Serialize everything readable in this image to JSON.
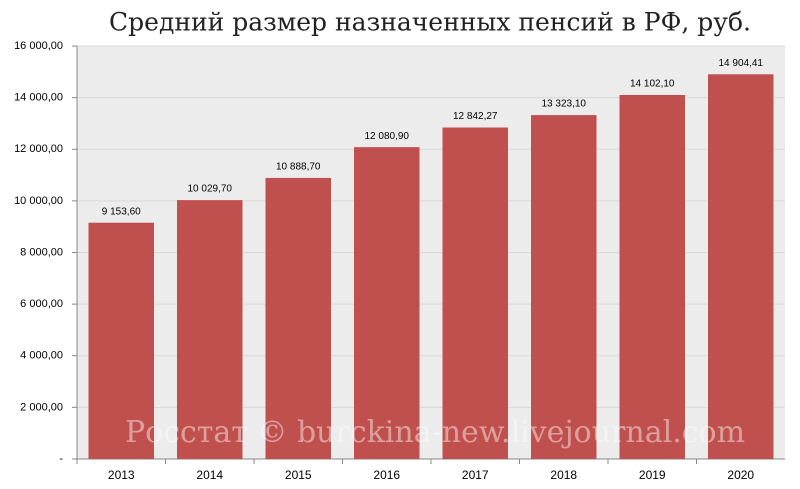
{
  "chart_data": {
    "type": "bar",
    "title": "Средний размер назначенных пенсий в РФ, руб.",
    "watermark": "Росстат © burckina-new.livejournal.com",
    "categories": [
      "2013",
      "2014",
      "2015",
      "2016",
      "2017",
      "2018",
      "2019",
      "2020"
    ],
    "values": [
      9153.6,
      10029.7,
      10888.7,
      12080.9,
      12842.27,
      13323.1,
      14102.1,
      14904.41
    ],
    "value_labels": [
      "9 153,60",
      "10 029,70",
      "10 888,70",
      "12 080,90",
      "12 842,27",
      "13 323,10",
      "14 102,10",
      "14 904,41"
    ],
    "color": "#c0504d",
    "ylim": [
      0,
      16000
    ],
    "yticks": [
      {
        "value": 0,
        "label": "-"
      },
      {
        "value": 2000,
        "label": "2 000,00"
      },
      {
        "value": 4000,
        "label": "4 000,00"
      },
      {
        "value": 6000,
        "label": "6 000,00"
      },
      {
        "value": 8000,
        "label": "8 000,00"
      },
      {
        "value": 10000,
        "label": "10 000,00"
      },
      {
        "value": 12000,
        "label": "12 000,00"
      },
      {
        "value": 14000,
        "label": "14 000,00"
      },
      {
        "value": 16000,
        "label": "16 000,00"
      }
    ],
    "grid": true
  }
}
